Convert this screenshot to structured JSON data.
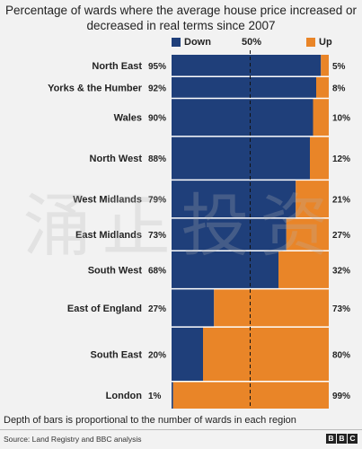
{
  "title": "Percentage of wards where the average house price increased or decreased in real terms since 2007",
  "legend": {
    "down_label": "Down",
    "up_label": "Up",
    "midpoint_label": "50%"
  },
  "colors": {
    "down": "#1f3f7a",
    "up": "#e98528",
    "background": "#f2f2f2",
    "midline": "#111111"
  },
  "footnote": "Depth of bars is proportional to the number of wards in each region",
  "source": "Source: Land Registry and BBC analysis",
  "logo": [
    "B",
    "B",
    "C"
  ],
  "watermark": "涌 正 投 资",
  "chart_data": {
    "type": "bar",
    "orientation": "horizontal",
    "stacked": true,
    "normalized_percent": true,
    "categories": [
      "North East",
      "Yorks & the Humber",
      "Wales",
      "North West",
      "West Midlands",
      "East Midlands",
      "South West",
      "East of England",
      "South East",
      "London"
    ],
    "series": [
      {
        "name": "Down",
        "values": [
          95,
          92,
          90,
          88,
          79,
          73,
          68,
          27,
          20,
          1
        ]
      },
      {
        "name": "Up",
        "values": [
          5,
          8,
          10,
          12,
          21,
          27,
          32,
          73,
          80,
          99
        ]
      }
    ],
    "down_labels": [
      "95%",
      "92%",
      "90%",
      "88%",
      "79%",
      "73%",
      "68%",
      "27%",
      "20%",
      "1%"
    ],
    "up_labels": [
      "5%",
      "8%",
      "10%",
      "12%",
      "21%",
      "27%",
      "32%",
      "73%",
      "80%",
      "99%"
    ],
    "relative_ward_counts": [
      4,
      4,
      7,
      8,
      7,
      6,
      7,
      7,
      10,
      5
    ],
    "xlim": [
      0,
      100
    ],
    "midline_at": 50,
    "legend_position": "top"
  }
}
